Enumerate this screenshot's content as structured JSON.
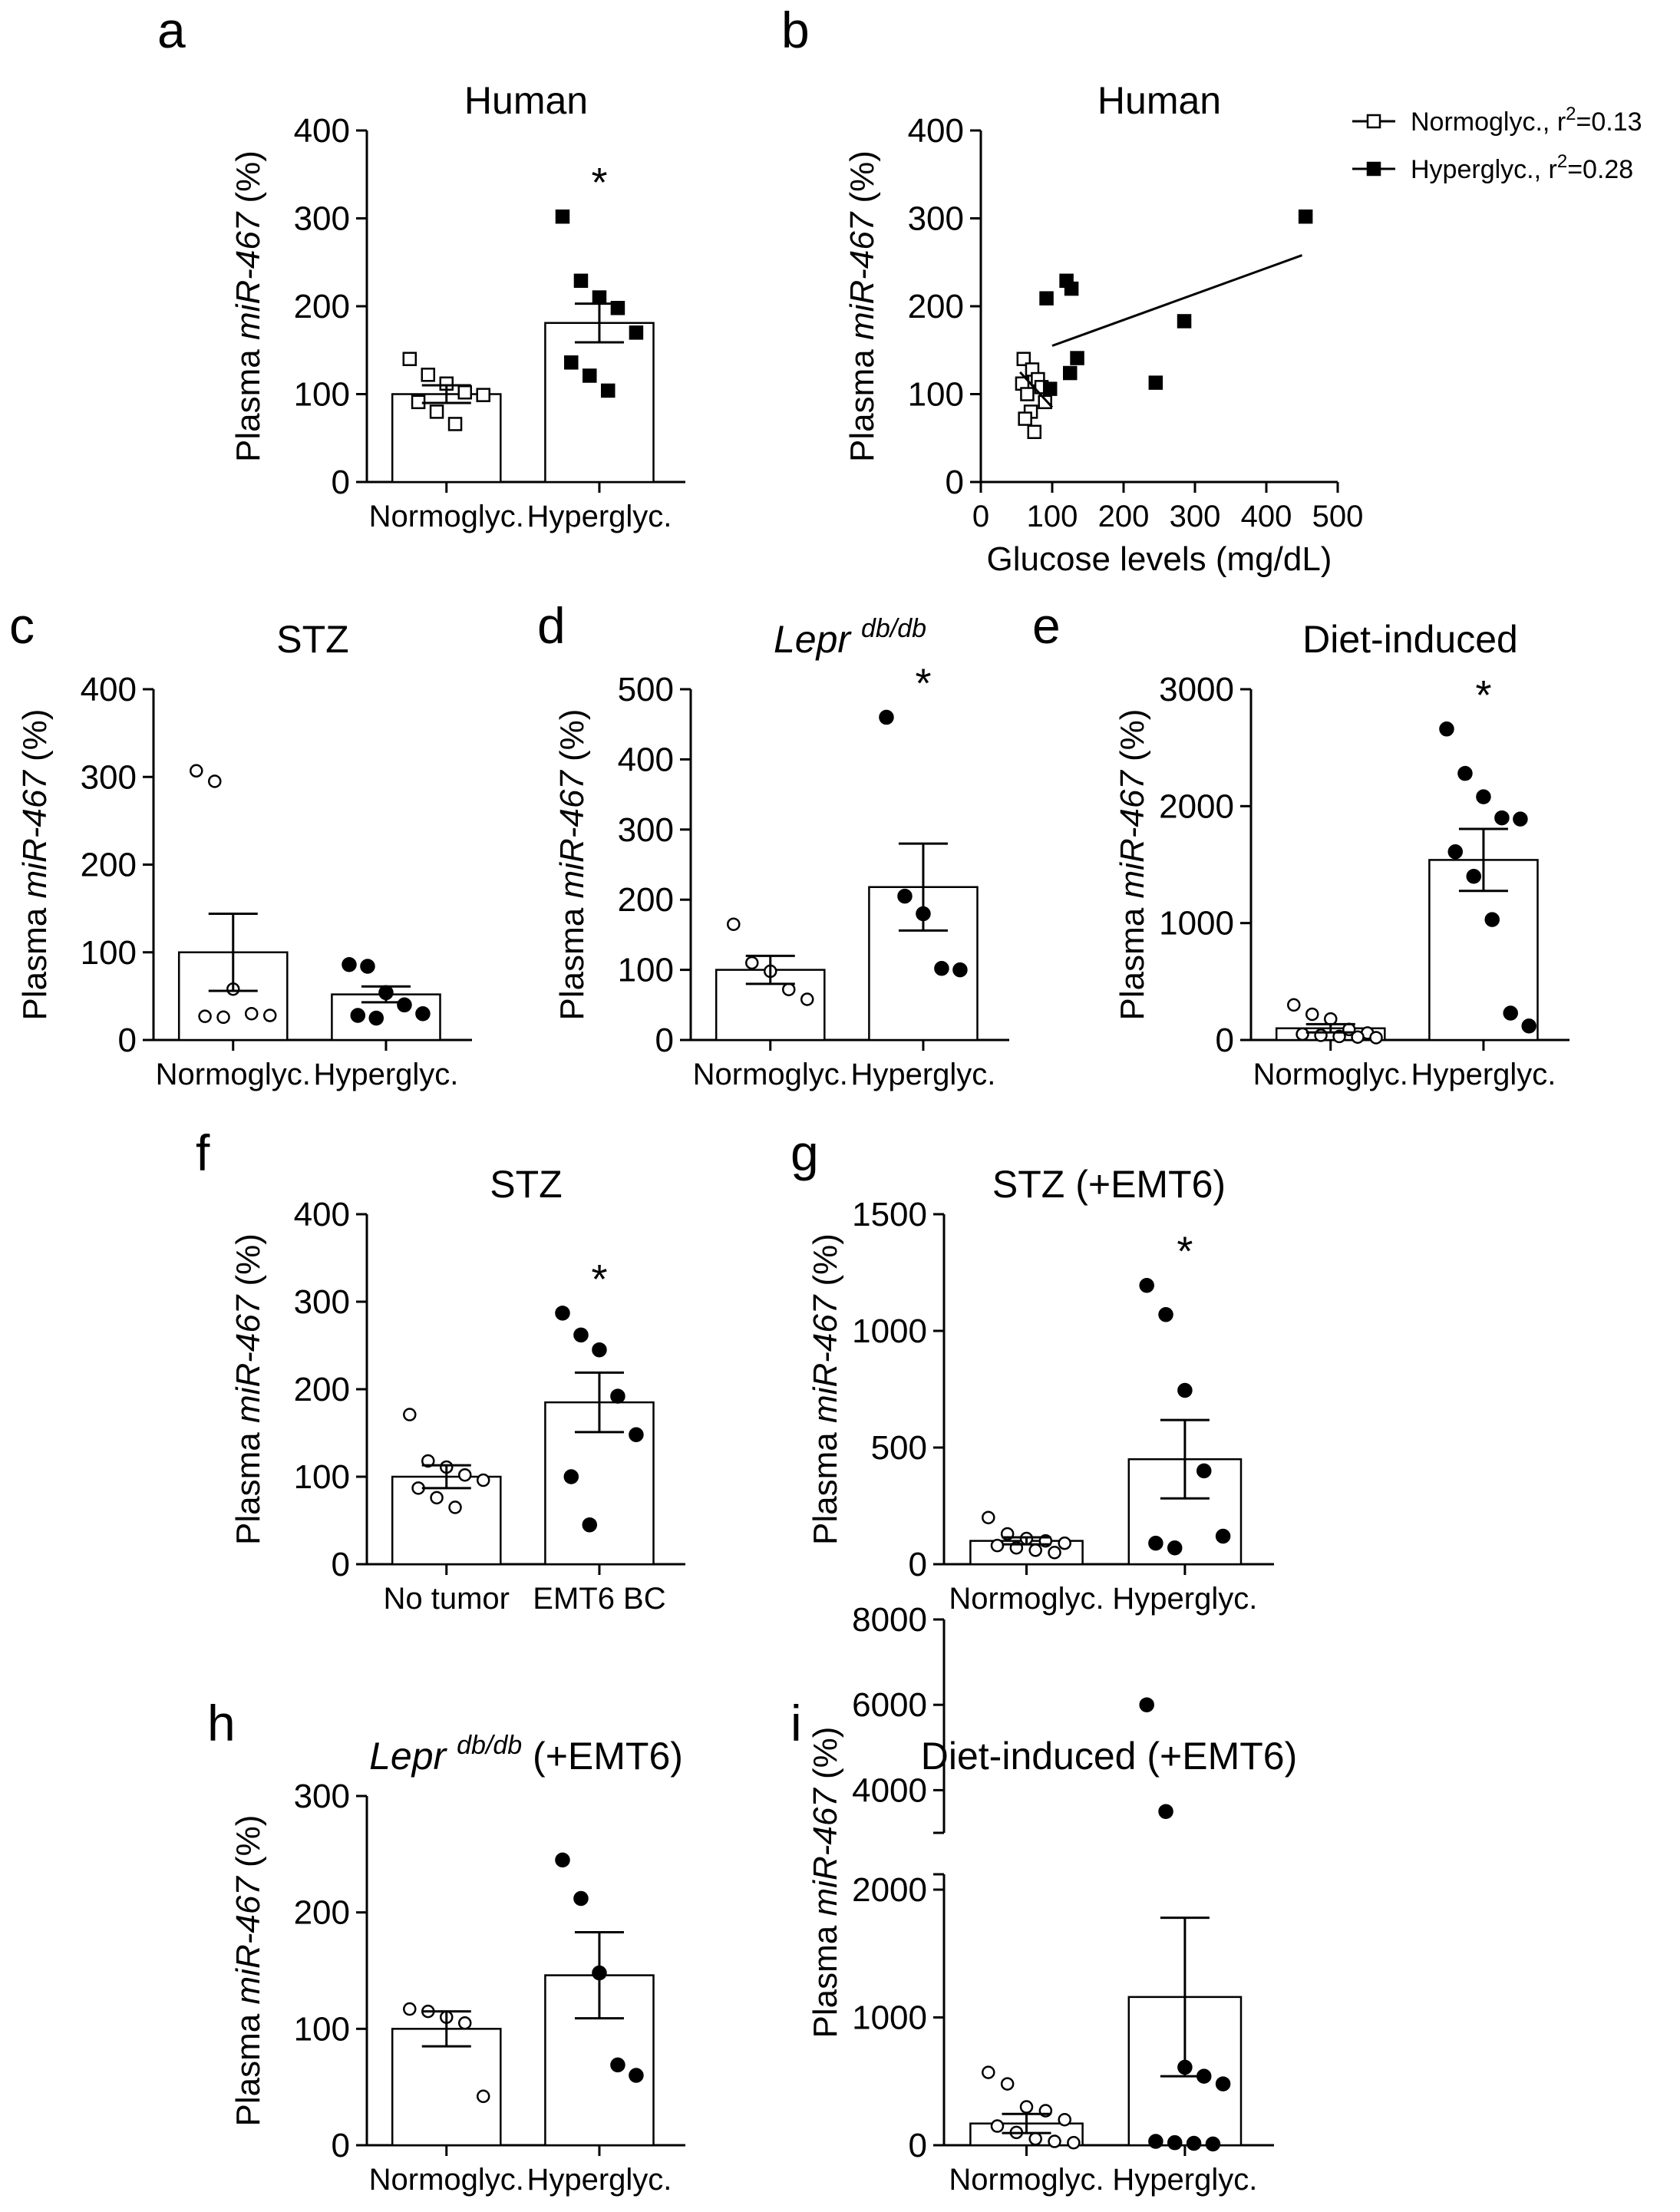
{
  "chart_data": [
    {
      "panel": "a",
      "type": "bar",
      "title": "Human",
      "ylabel_prefix": "Plasma ",
      "ylabel_italic": "miR-467",
      "ylabel_suffix": " (%)",
      "ylim": [
        0,
        400
      ],
      "yticks": [
        0,
        100,
        200,
        300,
        400
      ],
      "categories": [
        "Normoglyc.",
        "Hyperglyc."
      ],
      "bars": [
        {
          "mean": 100,
          "sem": 10,
          "marker": "open-square",
          "points": [
            140,
            122,
            112,
            102,
            99,
            91,
            80,
            66
          ]
        },
        {
          "mean": 181,
          "sem": 22,
          "marker": "filled-square",
          "points": [
            302,
            229,
            210,
            198,
            170,
            136,
            121,
            104
          ]
        }
      ],
      "significance": "*"
    },
    {
      "panel": "b",
      "type": "scatter",
      "title": "Human",
      "ylabel_prefix": "Plasma ",
      "ylabel_italic": "miR-467",
      "ylabel_suffix": " (%)",
      "xlabel": "Glucose levels (mg/dL)",
      "xlim": [
        0,
        500
      ],
      "xticks": [
        0,
        100,
        200,
        300,
        400,
        500
      ],
      "ylim": [
        0,
        400
      ],
      "yticks": [
        0,
        100,
        200,
        300,
        400
      ],
      "series": [
        {
          "name": "Normoglyc., r",
          "sup": "2",
          "r2_text": "=0.13",
          "marker": "open-square",
          "x": [
            60,
            72,
            80,
            58,
            85,
            65,
            90,
            70,
            62,
            75
          ],
          "y": [
            140,
            128,
            117,
            112,
            108,
            100,
            91,
            80,
            72,
            57
          ],
          "fit": {
            "x": [
              55,
              100
            ],
            "y": [
              125,
              85
            ]
          }
        },
        {
          "name": "Hyperglyc., r",
          "sup": "2",
          "r2_text": "=0.28",
          "marker": "filled-square",
          "x": [
            455,
            120,
            127,
            92,
            285,
            135,
            125,
            97,
            245
          ],
          "y": [
            302,
            229,
            220,
            209,
            183,
            141,
            124,
            106,
            113
          ],
          "fit": {
            "x": [
              100,
              450
            ],
            "y": [
              155,
              258
            ]
          }
        }
      ]
    },
    {
      "panel": "c",
      "type": "bar",
      "title": "STZ",
      "ylabel_prefix": "Plasma ",
      "ylabel_italic": "miR-467",
      "ylabel_suffix": " (%)",
      "ylim": [
        0,
        400
      ],
      "yticks": [
        0,
        100,
        200,
        300,
        400
      ],
      "categories": [
        "Normoglyc.",
        "Hyperglyc."
      ],
      "bars": [
        {
          "mean": 100,
          "sem": 44,
          "marker": "open-circle",
          "points": [
            307,
            295,
            58,
            30,
            28,
            27,
            26
          ]
        },
        {
          "mean": 52,
          "sem": 9,
          "marker": "filled-circle",
          "points": [
            86,
            84,
            54,
            40,
            30,
            28,
            25
          ]
        }
      ],
      "significance": ""
    },
    {
      "panel": "d",
      "type": "bar",
      "title_italic": "Lepr",
      "title_sup": "db/db",
      "title": "",
      "ylabel_prefix": "Plasma ",
      "ylabel_italic": "miR-467",
      "ylabel_suffix": " (%)",
      "ylim": [
        0,
        500
      ],
      "yticks": [
        0,
        100,
        200,
        300,
        400,
        500
      ],
      "categories": [
        "Normoglyc.",
        "Hyperglyc."
      ],
      "bars": [
        {
          "mean": 100,
          "sem": 20,
          "marker": "open-circle",
          "points": [
            165,
            110,
            98,
            72,
            58
          ]
        },
        {
          "mean": 218,
          "sem": 62,
          "marker": "filled-circle",
          "points": [
            460,
            205,
            180,
            102,
            100
          ]
        }
      ],
      "significance": "*"
    },
    {
      "panel": "e",
      "type": "bar",
      "title": "Diet-induced",
      "ylabel_prefix": "Plasma ",
      "ylabel_italic": "miR-467",
      "ylabel_suffix": " (%)",
      "ylim": [
        0,
        3000
      ],
      "yticks": [
        0,
        1000,
        2000,
        3000
      ],
      "categories": [
        "Normoglyc.",
        "Hyperglyc."
      ],
      "bars": [
        {
          "mean": 100,
          "sem": 35,
          "marker": "open-circle",
          "points": [
            300,
            220,
            180,
            90,
            60,
            50,
            40,
            30,
            25,
            20
          ]
        },
        {
          "mean": 1540,
          "sem": 265,
          "marker": "filled-circle",
          "points": [
            2660,
            2280,
            2080,
            1900,
            1890,
            1610,
            1400,
            1030,
            230,
            120
          ]
        }
      ],
      "significance": "*"
    },
    {
      "panel": "f",
      "type": "bar",
      "title": "STZ",
      "ylabel_prefix": "Plasma ",
      "ylabel_italic": "miR-467",
      "ylabel_suffix": " (%)",
      "ylim": [
        0,
        400
      ],
      "yticks": [
        0,
        100,
        200,
        300,
        400
      ],
      "categories": [
        "No tumor",
        "EMT6 BC"
      ],
      "bars": [
        {
          "mean": 100,
          "sem": 13,
          "marker": "open-circle",
          "points": [
            171,
            118,
            111,
            102,
            96,
            87,
            76,
            65
          ]
        },
        {
          "mean": 185,
          "sem": 34,
          "marker": "filled-circle",
          "points": [
            287,
            262,
            245,
            192,
            148,
            100,
            45
          ]
        }
      ],
      "significance": "*"
    },
    {
      "panel": "g",
      "type": "bar",
      "title": "STZ (+EMT6)",
      "ylabel_prefix": "Plasma ",
      "ylabel_italic": "miR-467",
      "ylabel_suffix": " (%)",
      "ylim": [
        0,
        1500
      ],
      "yticks": [
        0,
        500,
        1000,
        1500
      ],
      "categories": [
        "Normoglyc.",
        "Hyperglyc."
      ],
      "bars": [
        {
          "mean": 100,
          "sem": 15,
          "marker": "open-circle",
          "points": [
            200,
            130,
            110,
            100,
            90,
            80,
            70,
            60,
            50
          ]
        },
        {
          "mean": 450,
          "sem": 168,
          "marker": "filled-circle",
          "points": [
            1195,
            1070,
            745,
            400,
            120,
            90,
            70
          ]
        }
      ],
      "significance": "*"
    },
    {
      "panel": "h",
      "type": "bar",
      "title_italic": "Lepr",
      "title_sup": "db/db",
      "title": " (+EMT6)",
      "ylabel_prefix": "Plasma ",
      "ylabel_italic": "miR-467",
      "ylabel_suffix": " (%)",
      "ylim": [
        0,
        300
      ],
      "yticks": [
        0,
        100,
        200,
        300
      ],
      "categories": [
        "Normoglyc.",
        "Hyperglyc."
      ],
      "bars": [
        {
          "mean": 100,
          "sem": 15,
          "marker": "open-circle",
          "points": [
            117,
            115,
            110,
            105,
            42
          ]
        },
        {
          "mean": 146,
          "sem": 37,
          "marker": "filled-circle",
          "points": [
            245,
            212,
            148,
            69,
            60
          ]
        }
      ],
      "significance": ""
    },
    {
      "panel": "i",
      "type": "bar",
      "title": "Diet-induced (+EMT6)",
      "ylabel_prefix": "Plasma ",
      "ylabel_italic": "miR-467",
      "ylabel_suffix": " (%)",
      "axis_break": true,
      "ylim_lower": [
        0,
        2000
      ],
      "yticks_lower": [
        0,
        1000,
        2000
      ],
      "ylim_upper": [
        3000,
        8000
      ],
      "yticks_upper": [
        4000,
        6000,
        8000
      ],
      "categories": [
        "Normoglyc.",
        "Hyperglyc."
      ],
      "bars": [
        {
          "mean": 170,
          "sem": 75,
          "marker": "open-circle",
          "points": [
            570,
            480,
            300,
            270,
            200,
            150,
            100,
            50,
            30,
            20
          ]
        },
        {
          "mean": 1160,
          "sem": 620,
          "marker": "filled-circle",
          "points": [
            6000,
            3500,
            610,
            540,
            480,
            30,
            20,
            15,
            10
          ]
        }
      ],
      "significance": ""
    }
  ],
  "panel_labels": [
    "a",
    "b",
    "c",
    "d",
    "e",
    "f",
    "g",
    "h",
    "i"
  ]
}
